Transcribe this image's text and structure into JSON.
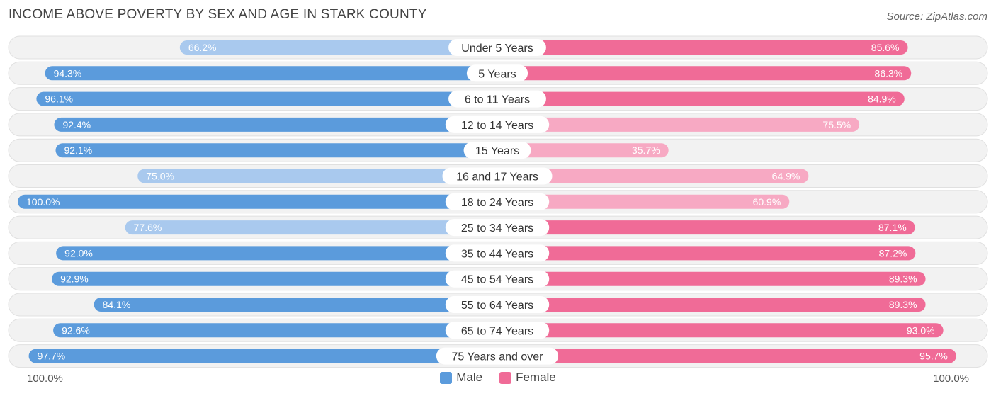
{
  "header": {
    "title": "INCOME ABOVE POVERTY BY SEX AND AGE IN STARK COUNTY",
    "source": "Source: ZipAtlas.com"
  },
  "axis": {
    "left_label": "100.0%",
    "right_label": "100.0%"
  },
  "legend": {
    "male_label": "Male",
    "female_label": "Female"
  },
  "colors": {
    "male_strong": "#5b9bdc",
    "male_light": "#a9c9ee",
    "female_strong": "#f06b97",
    "female_light": "#f7a9c3",
    "row_bg": "#f2f2f2",
    "row_border": "#e0e0e0"
  },
  "chart_data": {
    "type": "bar",
    "orientation": "horizontal-diverging",
    "title": "INCOME ABOVE POVERTY BY SEX AND AGE IN STARK COUNTY",
    "xlim": [
      -100,
      100
    ],
    "categories": [
      "Under 5 Years",
      "5 Years",
      "6 to 11 Years",
      "12 to 14 Years",
      "15 Years",
      "16 and 17 Years",
      "18 to 24 Years",
      "25 to 34 Years",
      "35 to 44 Years",
      "45 to 54 Years",
      "55 to 64 Years",
      "65 to 74 Years",
      "75 Years and over"
    ],
    "series": [
      {
        "name": "Male",
        "values": [
          66.2,
          94.3,
          96.1,
          92.4,
          92.1,
          75.0,
          100.0,
          77.6,
          92.0,
          92.9,
          84.1,
          92.6,
          97.7
        ],
        "labels": [
          "66.2%",
          "94.3%",
          "96.1%",
          "92.4%",
          "92.1%",
          "75.0%",
          "100.0%",
          "77.6%",
          "92.0%",
          "92.9%",
          "84.1%",
          "92.6%",
          "97.7%"
        ]
      },
      {
        "name": "Female",
        "values": [
          85.6,
          86.3,
          84.9,
          75.5,
          35.7,
          64.9,
          60.9,
          87.1,
          87.2,
          89.3,
          89.3,
          93.0,
          95.7
        ],
        "labels": [
          "85.6%",
          "86.3%",
          "84.9%",
          "75.5%",
          "35.7%",
          "64.9%",
          "60.9%",
          "87.1%",
          "87.2%",
          "89.3%",
          "89.3%",
          "93.0%",
          "95.7%"
        ]
      }
    ]
  }
}
